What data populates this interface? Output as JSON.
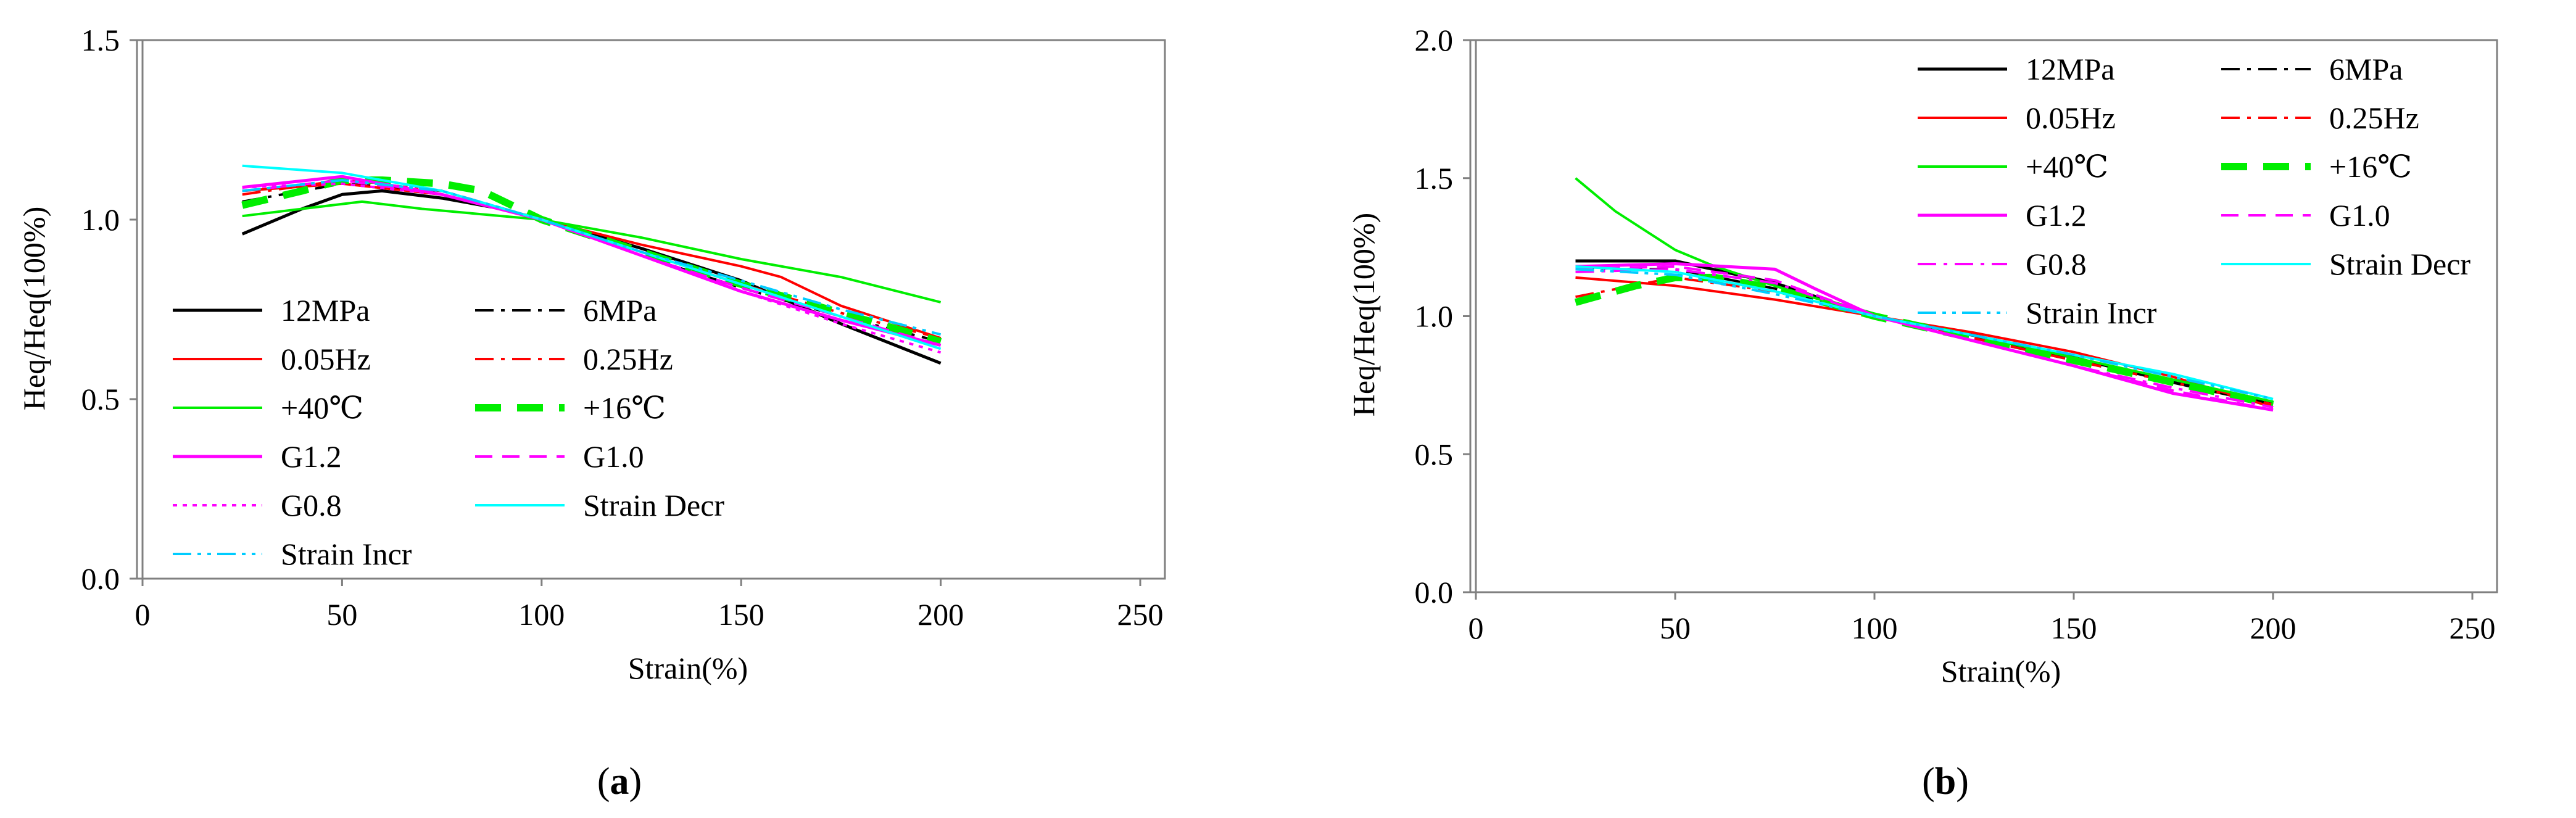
{
  "chart_data": [
    {
      "type": "line",
      "caption": "a",
      "xlabel": "Strain(%)",
      "ylabel": "Heq/Heq(100%)",
      "xlim": [
        0,
        250
      ],
      "ylim": [
        0,
        1.5
      ],
      "x_ticks": [
        "0",
        "50",
        "100",
        "150",
        "200",
        "250"
      ],
      "y_ticks": [
        "0.0",
        "0.5",
        "1.0",
        "1.5"
      ],
      "x_tick_values": [
        0,
        50,
        100,
        150,
        200,
        250
      ],
      "y_tick_values": [
        0,
        0.5,
        1.0,
        1.5
      ],
      "grid": false,
      "legend_position": "bottom-left",
      "series": [
        {
          "name": "12MPa",
          "color": "#000000",
          "dash": "solid",
          "width": 5,
          "x": [
            25,
            40,
            50,
            60,
            75,
            90,
            100,
            125,
            150,
            175,
            200
          ],
          "y": [
            0.96,
            1.03,
            1.07,
            1.08,
            1.06,
            1.03,
            1.0,
            0.92,
            0.83,
            0.71,
            0.6
          ]
        },
        {
          "name": "6MPa",
          "color": "#000000",
          "dash": "dashdot",
          "width": 4,
          "x": [
            25,
            50,
            75,
            100,
            125,
            150,
            175,
            200
          ],
          "y": [
            1.05,
            1.1,
            1.08,
            1.0,
            0.9,
            0.81,
            0.73,
            0.66
          ]
        },
        {
          "name": "0.05Hz",
          "color": "#ff0000",
          "dash": "solid",
          "width": 4,
          "x": [
            25,
            50,
            75,
            100,
            125,
            150,
            160,
            175,
            200
          ],
          "y": [
            1.08,
            1.1,
            1.07,
            1.0,
            0.93,
            0.87,
            0.84,
            0.76,
            0.67
          ]
        },
        {
          "name": "0.25Hz",
          "color": "#ff0000",
          "dash": "dashdot",
          "width": 4,
          "x": [
            25,
            50,
            75,
            100,
            125,
            150,
            175,
            200
          ],
          "y": [
            1.07,
            1.11,
            1.08,
            1.0,
            0.91,
            0.82,
            0.74,
            0.67
          ]
        },
        {
          "name": "+40℃",
          "color": "#00ee00",
          "dash": "solid",
          "width": 4,
          "x": [
            25,
            40,
            55,
            70,
            90,
            100,
            125,
            150,
            175,
            200
          ],
          "y": [
            1.01,
            1.03,
            1.05,
            1.03,
            1.01,
            1.0,
            0.95,
            0.89,
            0.84,
            0.77
          ]
        },
        {
          "name": "+16℃",
          "color": "#00ee00",
          "dash": "bold-dash",
          "width": 12,
          "x": [
            25,
            40,
            50,
            60,
            75,
            85,
            100,
            125,
            150,
            175,
            200
          ],
          "y": [
            1.04,
            1.08,
            1.11,
            1.11,
            1.1,
            1.08,
            1.0,
            0.91,
            0.82,
            0.74,
            0.66
          ]
        },
        {
          "name": "G1.2",
          "color": "#ff00ff",
          "dash": "solid",
          "width": 5,
          "x": [
            25,
            50,
            75,
            100,
            125,
            150,
            175,
            200
          ],
          "y": [
            1.09,
            1.12,
            1.07,
            1.0,
            0.9,
            0.8,
            0.72,
            0.65
          ]
        },
        {
          "name": "G1.0",
          "color": "#ff00ff",
          "dash": "dashed",
          "width": 4,
          "x": [
            25,
            50,
            75,
            100,
            125,
            150,
            175,
            200
          ],
          "y": [
            1.08,
            1.11,
            1.07,
            1.0,
            0.9,
            0.81,
            0.73,
            0.65
          ]
        },
        {
          "name": "G0.8",
          "color": "#ff00ff",
          "dash": "dotted",
          "width": 4,
          "x": [
            25,
            50,
            75,
            100,
            125,
            150,
            175,
            200
          ],
          "y": [
            1.09,
            1.1,
            1.07,
            1.0,
            0.9,
            0.8,
            0.71,
            0.63
          ]
        },
        {
          "name": "Strain Decr",
          "color": "#00ffff",
          "dash": "solid",
          "width": 4,
          "x": [
            25,
            50,
            75,
            100,
            125,
            150,
            175,
            200
          ],
          "y": [
            1.15,
            1.13,
            1.08,
            1.0,
            0.91,
            0.82,
            0.73,
            0.64
          ]
        },
        {
          "name": "Strain Incr",
          "color": "#00ccff",
          "dash": "dashdotdot",
          "width": 4,
          "x": [
            25,
            50,
            75,
            100,
            125,
            150,
            175,
            200
          ],
          "y": [
            1.08,
            1.11,
            1.08,
            1.0,
            0.91,
            0.83,
            0.75,
            0.68
          ]
        }
      ]
    },
    {
      "type": "line",
      "caption": "b",
      "xlabel": "Strain(%)",
      "ylabel": "Heq/Heq(100%)",
      "xlim": [
        0,
        250
      ],
      "ylim": [
        0,
        2.0
      ],
      "x_ticks": [
        "0",
        "50",
        "100",
        "150",
        "200",
        "250"
      ],
      "y_ticks": [
        "0.0",
        "0.5",
        "1.0",
        "1.5",
        "2.0"
      ],
      "x_tick_values": [
        0,
        50,
        100,
        150,
        200,
        250
      ],
      "y_tick_values": [
        0,
        0.5,
        1.0,
        1.5,
        2.0
      ],
      "grid": false,
      "legend_position": "top-right",
      "series": [
        {
          "name": "12MPa",
          "color": "#000000",
          "dash": "solid",
          "width": 5,
          "x": [
            25,
            50,
            75,
            100,
            125,
            150,
            175,
            200
          ],
          "y": [
            1.2,
            1.2,
            1.12,
            1.0,
            0.93,
            0.85,
            0.76,
            0.68
          ]
        },
        {
          "name": "6MPa",
          "color": "#000000",
          "dash": "dashdot",
          "width": 4,
          "x": [
            25,
            50,
            75,
            100,
            125,
            150,
            175,
            200
          ],
          "y": [
            1.17,
            1.17,
            1.1,
            1.0,
            0.92,
            0.84,
            0.76,
            0.68
          ]
        },
        {
          "name": "0.05Hz",
          "color": "#ff0000",
          "dash": "solid",
          "width": 4,
          "x": [
            25,
            50,
            75,
            100,
            125,
            150,
            175,
            200
          ],
          "y": [
            1.14,
            1.11,
            1.06,
            1.0,
            0.94,
            0.87,
            0.78,
            0.67
          ]
        },
        {
          "name": "0.25Hz",
          "color": "#ff0000",
          "dash": "dashdot",
          "width": 4,
          "x": [
            25,
            50,
            75,
            100,
            125,
            150,
            175,
            200
          ],
          "y": [
            1.07,
            1.14,
            1.09,
            1.0,
            0.92,
            0.84,
            0.76,
            0.68
          ]
        },
        {
          "name": "+40℃",
          "color": "#00ee00",
          "dash": "solid",
          "width": 4,
          "x": [
            25,
            35,
            50,
            60,
            75,
            100,
            125,
            150,
            175,
            200
          ],
          "y": [
            1.5,
            1.38,
            1.24,
            1.18,
            1.11,
            1.0,
            0.93,
            0.85,
            0.77,
            0.69
          ]
        },
        {
          "name": "+16℃",
          "color": "#00ee00",
          "dash": "bold-dash",
          "width": 12,
          "x": [
            25,
            40,
            50,
            60,
            75,
            100,
            125,
            150,
            175,
            200
          ],
          "y": [
            1.05,
            1.11,
            1.14,
            1.14,
            1.1,
            1.0,
            0.92,
            0.84,
            0.76,
            0.68
          ]
        },
        {
          "name": "G1.2",
          "color": "#ff00ff",
          "dash": "solid",
          "width": 5,
          "x": [
            25,
            50,
            75,
            85,
            100,
            125,
            150,
            175,
            200
          ],
          "y": [
            1.18,
            1.19,
            1.17,
            1.1,
            1.0,
            0.91,
            0.82,
            0.72,
            0.66
          ]
        },
        {
          "name": "G1.0",
          "color": "#ff00ff",
          "dash": "dashed",
          "width": 4,
          "x": [
            25,
            50,
            75,
            100,
            125,
            150,
            175,
            200
          ],
          "y": [
            1.17,
            1.18,
            1.13,
            1.0,
            0.91,
            0.82,
            0.73,
            0.66
          ]
        },
        {
          "name": "G0.8",
          "color": "#ff00ff",
          "dash": "dashdot",
          "width": 4,
          "x": [
            25,
            50,
            75,
            100,
            125,
            150,
            175,
            200
          ],
          "y": [
            1.16,
            1.17,
            1.12,
            1.0,
            0.91,
            0.82,
            0.74,
            0.67
          ]
        },
        {
          "name": "Strain Decr",
          "color": "#00ffff",
          "dash": "solid",
          "width": 4,
          "x": [
            25,
            50,
            75,
            100,
            125,
            150,
            175,
            200
          ],
          "y": [
            1.18,
            1.16,
            1.09,
            1.0,
            0.93,
            0.86,
            0.79,
            0.7
          ]
        },
        {
          "name": "Strain Incr",
          "color": "#00ccff",
          "dash": "dashdotdot",
          "width": 4,
          "x": [
            25,
            50,
            75,
            100,
            125,
            150,
            175,
            200
          ],
          "y": [
            1.17,
            1.15,
            1.08,
            1.0,
            0.93,
            0.86,
            0.78,
            0.7
          ]
        }
      ]
    }
  ]
}
